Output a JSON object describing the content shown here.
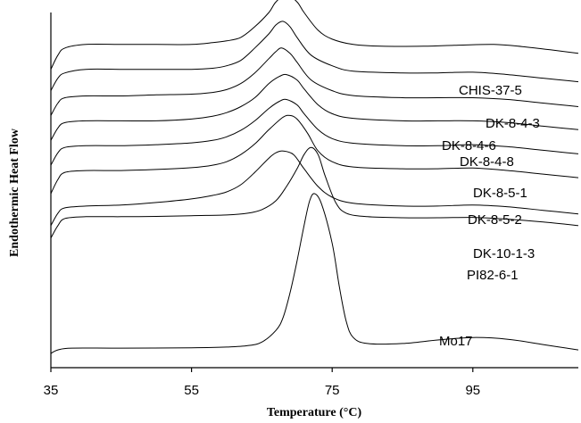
{
  "chart_data": {
    "type": "line",
    "xlabel": "Temperature (°C)",
    "ylabel": "Endothermic Heat Flow",
    "xlim": [
      35,
      110
    ],
    "xticks": [
      35,
      55,
      75,
      95
    ],
    "x_tick_labels": [
      "35",
      "55",
      "75",
      "95"
    ],
    "grid": false,
    "legend": "none",
    "series": [
      {
        "name": "CHIS-37-5",
        "points": [
          [
            35,
            84
          ],
          [
            36,
            88
          ],
          [
            37,
            90
          ],
          [
            40,
            91
          ],
          [
            45,
            91
          ],
          [
            50,
            91
          ],
          [
            55,
            91
          ],
          [
            58,
            91.5
          ],
          [
            60,
            92
          ],
          [
            62,
            93
          ],
          [
            64,
            96
          ],
          [
            66,
            100
          ],
          [
            67,
            103
          ],
          [
            68.5,
            105
          ],
          [
            70,
            103
          ],
          [
            71,
            100
          ],
          [
            73,
            95
          ],
          [
            75,
            92.5
          ],
          [
            78,
            91
          ],
          [
            82,
            90.5
          ],
          [
            88,
            90.5
          ],
          [
            93,
            90.8
          ],
          [
            98,
            91
          ],
          [
            102,
            90.4
          ],
          [
            106,
            89.5
          ],
          [
            110,
            88.5
          ]
        ]
      },
      {
        "name": "DK-8-4-3",
        "points": [
          [
            35,
            78
          ],
          [
            36,
            81.5
          ],
          [
            37,
            83
          ],
          [
            40,
            84
          ],
          [
            45,
            84
          ],
          [
            50,
            84
          ],
          [
            55,
            84
          ],
          [
            58,
            84.3
          ],
          [
            60,
            85
          ],
          [
            62,
            86.5
          ],
          [
            64,
            90
          ],
          [
            66,
            94
          ],
          [
            67,
            96.5
          ],
          [
            68,
            97.5
          ],
          [
            69,
            96
          ],
          [
            70,
            93
          ],
          [
            72,
            88
          ],
          [
            75,
            85
          ],
          [
            78,
            83.5
          ],
          [
            85,
            83
          ],
          [
            90,
            83
          ],
          [
            95,
            83.2
          ],
          [
            100,
            82.5
          ],
          [
            105,
            81.5
          ],
          [
            110,
            80.5
          ]
        ]
      },
      {
        "name": "DK-8-4-6",
        "points": [
          [
            35,
            71
          ],
          [
            36,
            74.5
          ],
          [
            37,
            76
          ],
          [
            40,
            76.5
          ],
          [
            45,
            76.5
          ],
          [
            50,
            76.8
          ],
          [
            55,
            77
          ],
          [
            58,
            77.5
          ],
          [
            60,
            78.3
          ],
          [
            62,
            80
          ],
          [
            64,
            83
          ],
          [
            66,
            87
          ],
          [
            67,
            89
          ],
          [
            67.8,
            90
          ],
          [
            69,
            88.5
          ],
          [
            70,
            86
          ],
          [
            72,
            81
          ],
          [
            75,
            78
          ],
          [
            78,
            76.6
          ],
          [
            85,
            76
          ],
          [
            90,
            76
          ],
          [
            95,
            76
          ],
          [
            100,
            75.5
          ],
          [
            105,
            74.5
          ],
          [
            110,
            73.5
          ]
        ]
      },
      {
        "name": "DK-8-4-8",
        "points": [
          [
            35,
            64
          ],
          [
            36,
            67.5
          ],
          [
            37,
            69
          ],
          [
            40,
            69.5
          ],
          [
            45,
            69.5
          ],
          [
            50,
            69.5
          ],
          [
            55,
            70
          ],
          [
            58,
            70.8
          ],
          [
            60,
            71.8
          ],
          [
            62,
            73.5
          ],
          [
            64,
            76
          ],
          [
            66,
            80
          ],
          [
            67.5,
            82
          ],
          [
            68.5,
            82.5
          ],
          [
            70,
            81
          ],
          [
            71,
            78.5
          ],
          [
            73,
            74
          ],
          [
            75,
            71.5
          ],
          [
            78,
            70.2
          ],
          [
            85,
            69.5
          ],
          [
            90,
            69.5
          ],
          [
            95,
            69.5
          ],
          [
            100,
            69
          ],
          [
            105,
            68
          ],
          [
            110,
            67
          ]
        ]
      },
      {
        "name": "DK-8-5-1",
        "points": [
          [
            35,
            57
          ],
          [
            36,
            60.5
          ],
          [
            37,
            62
          ],
          [
            40,
            62.5
          ],
          [
            45,
            62.5
          ],
          [
            50,
            62.8
          ],
          [
            55,
            63.3
          ],
          [
            58,
            64
          ],
          [
            60,
            65
          ],
          [
            62,
            66.8
          ],
          [
            64,
            69.5
          ],
          [
            66,
            73
          ],
          [
            67.5,
            75
          ],
          [
            68.5,
            75.5
          ],
          [
            70,
            74
          ],
          [
            71,
            71.5
          ],
          [
            73,
            67
          ],
          [
            75,
            64.5
          ],
          [
            78,
            63.2
          ],
          [
            85,
            62.5
          ],
          [
            90,
            62.5
          ],
          [
            95,
            62.8
          ],
          [
            100,
            62.2
          ],
          [
            105,
            61.2
          ],
          [
            110,
            60.2
          ]
        ]
      },
      {
        "name": "DK-8-5-2",
        "points": [
          [
            35,
            49
          ],
          [
            36,
            53
          ],
          [
            37,
            55
          ],
          [
            40,
            55.5
          ],
          [
            45,
            55.5
          ],
          [
            50,
            55.8
          ],
          [
            55,
            56.3
          ],
          [
            58,
            57
          ],
          [
            60,
            58
          ],
          [
            62,
            60
          ],
          [
            64,
            63
          ],
          [
            66,
            67
          ],
          [
            68,
            70.5
          ],
          [
            69,
            71
          ],
          [
            70,
            70
          ],
          [
            71.5,
            66
          ],
          [
            73,
            61
          ],
          [
            75,
            58
          ],
          [
            78,
            56.5
          ],
          [
            85,
            56
          ],
          [
            90,
            56
          ],
          [
            95,
            56.2
          ],
          [
            100,
            55.5
          ],
          [
            105,
            54.5
          ],
          [
            110,
            53.5
          ]
        ]
      },
      {
        "name": "DK-10-1-3",
        "points": [
          [
            35,
            40
          ],
          [
            36,
            43.5
          ],
          [
            37,
            45
          ],
          [
            40,
            45.5
          ],
          [
            45,
            45.8
          ],
          [
            50,
            46.5
          ],
          [
            55,
            47.5
          ],
          [
            58,
            48.5
          ],
          [
            60,
            49.5
          ],
          [
            62,
            51.5
          ],
          [
            64,
            55
          ],
          [
            66,
            59
          ],
          [
            67,
            60.5
          ],
          [
            68,
            61
          ],
          [
            69.5,
            60
          ],
          [
            71,
            56
          ],
          [
            73,
            51
          ],
          [
            75,
            48
          ],
          [
            78,
            46.3
          ],
          [
            85,
            45.5
          ],
          [
            90,
            45.5
          ],
          [
            95,
            45.8
          ],
          [
            100,
            45.3
          ],
          [
            105,
            44.3
          ],
          [
            110,
            43.3
          ]
        ]
      },
      {
        "name": "PI82-6-1",
        "points": [
          [
            35,
            36.5
          ],
          [
            36,
            40
          ],
          [
            37,
            42
          ],
          [
            40,
            42.5
          ],
          [
            45,
            42.5
          ],
          [
            50,
            42.6
          ],
          [
            55,
            42.8
          ],
          [
            60,
            43
          ],
          [
            63,
            43.5
          ],
          [
            65,
            44.5
          ],
          [
            67,
            47
          ],
          [
            68.5,
            51
          ],
          [
            70,
            56
          ],
          [
            71,
            60
          ],
          [
            72,
            62
          ],
          [
            73,
            60
          ],
          [
            74,
            54
          ],
          [
            75.5,
            46.5
          ],
          [
            77,
            43.5
          ],
          [
            80,
            42.5
          ],
          [
            85,
            42.2
          ],
          [
            90,
            42.2
          ],
          [
            95,
            42.3
          ],
          [
            100,
            41.8
          ],
          [
            105,
            41
          ],
          [
            110,
            40
          ]
        ]
      },
      {
        "name": "Mo17",
        "points": [
          [
            35,
            4
          ],
          [
            36,
            5
          ],
          [
            38,
            5.5
          ],
          [
            45,
            5.5
          ],
          [
            55,
            5.6
          ],
          [
            60,
            5.8
          ],
          [
            63,
            6.2
          ],
          [
            65,
            7.2
          ],
          [
            67,
            10.5
          ],
          [
            68,
            14
          ],
          [
            69,
            21
          ],
          [
            70,
            30
          ],
          [
            71,
            40
          ],
          [
            71.8,
            47
          ],
          [
            72.5,
            49
          ],
          [
            73.5,
            46
          ],
          [
            75,
            35
          ],
          [
            76,
            23
          ],
          [
            77,
            13
          ],
          [
            78,
            8.5
          ],
          [
            80,
            6.8
          ],
          [
            85,
            6.8
          ],
          [
            90,
            7.8
          ],
          [
            95,
            8.5
          ],
          [
            100,
            8
          ],
          [
            105,
            6.5
          ],
          [
            110,
            5
          ]
        ]
      }
    ]
  }
}
